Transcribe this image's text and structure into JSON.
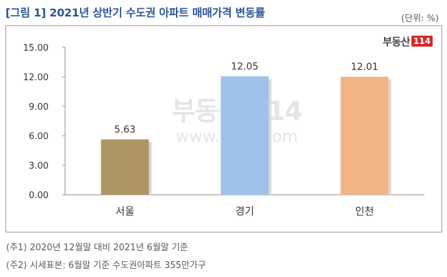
{
  "title": "[그림 1] 2021년 상반기 수도권 아파트 매매가격 변동률",
  "unit": "(단위: %)",
  "logo": {
    "text": "부동산",
    "badge": "114"
  },
  "watermark": {
    "logo": "부동산 114",
    "url": "www.r114.com"
  },
  "notes": [
    "(주1) 2020년 12월말 대비 2021년 6월말 기준",
    "(주2) 시세표본: 6월말 기준 수도권아파트 355만가구"
  ],
  "colors": {
    "title": "#2e5597",
    "bars": [
      "#ac9561",
      "#9fc2e8",
      "#f0b485"
    ]
  },
  "chart_data": {
    "type": "bar",
    "categories": [
      "서울",
      "경기",
      "인천"
    ],
    "values": [
      5.63,
      12.05,
      12.01
    ],
    "value_labels": [
      "5.63",
      "12.05",
      "12.01"
    ],
    "ylim": [
      0,
      15
    ],
    "yticks": [
      "0.00",
      "3.00",
      "6.00",
      "9.00",
      "12.00",
      "15.00"
    ],
    "xlabel": "",
    "ylabel": "",
    "grid": false,
    "legend": "none"
  }
}
